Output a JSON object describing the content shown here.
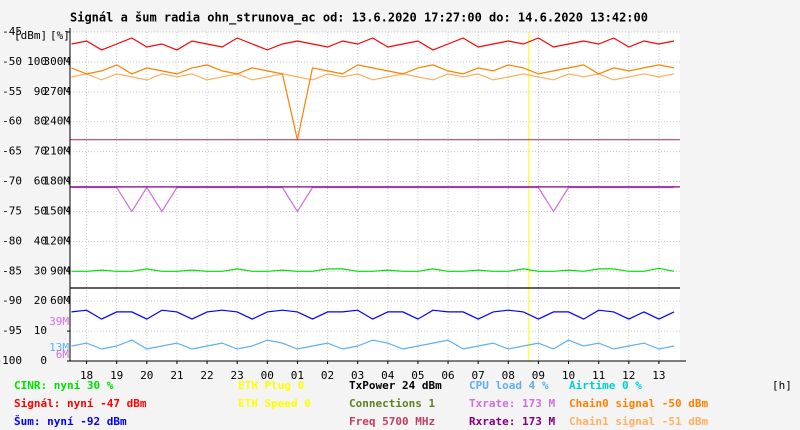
{
  "chart_data": {
    "type": "line",
    "title": "Signál a šum radia ohn_strunova_ac od: 13.6.2020 17:27:00 do: 14.6.2020 13:42:00",
    "y_unit_label": "[dBm]",
    "y2_unit_label": "[%]",
    "x_unit_label": "[h]",
    "xlim": [
      0.45,
      20.7
    ],
    "xticks": [
      {
        "value": 1,
        "label": "18"
      },
      {
        "value": 2,
        "label": "19"
      },
      {
        "value": 3,
        "label": "20"
      },
      {
        "value": 4,
        "label": "21"
      },
      {
        "value": 5,
        "label": "22"
      },
      {
        "value": 6,
        "label": "23"
      },
      {
        "value": 7,
        "label": "00"
      },
      {
        "value": 8,
        "label": "01"
      },
      {
        "value": 9,
        "label": "02"
      },
      {
        "value": 10,
        "label": "03"
      },
      {
        "value": 11,
        "label": "04"
      },
      {
        "value": 12,
        "label": "05"
      },
      {
        "value": 13,
        "label": "06"
      },
      {
        "value": 14,
        "label": "07"
      },
      {
        "value": 15,
        "label": "08"
      },
      {
        "value": 16,
        "label": "09"
      },
      {
        "value": 17,
        "label": "10"
      },
      {
        "value": 18,
        "label": "11"
      },
      {
        "value": 19,
        "label": "12"
      },
      {
        "value": 20,
        "label": "13"
      }
    ],
    "ylim": [
      -100,
      -45
    ],
    "yticks": [
      -100,
      -95,
      -90,
      -85,
      -80,
      -75,
      -70,
      -65,
      -60,
      -55,
      -50,
      -45
    ],
    "y2lim": [
      0,
      110
    ],
    "y2ticks": [
      0,
      10,
      20,
      30,
      40,
      50,
      60,
      70,
      80,
      90,
      100
    ],
    "y3lim": [
      0,
      330
    ],
    "y3ticks": [
      {
        "value": 60,
        "label": "60M"
      },
      {
        "value": 90,
        "label": "90M"
      },
      {
        "value": 120,
        "label": "120M"
      },
      {
        "value": 150,
        "label": "150M"
      },
      {
        "value": 180,
        "label": "180M"
      },
      {
        "value": 210,
        "label": "210M"
      },
      {
        "value": 240,
        "label": "240M"
      },
      {
        "value": 270,
        "label": "270M"
      },
      {
        "value": 300,
        "label": "300M"
      }
    ],
    "y3_markers": [
      {
        "value": 39,
        "label": "39M",
        "color": "#d070e0"
      },
      {
        "value": 13,
        "label": "13M",
        "color": "#60b0f0"
      },
      {
        "value": 6,
        "label": "6M",
        "color": "#d070e0"
      }
    ],
    "grid": true,
    "vertical_marker": {
      "x": 15.68,
      "color": "#ffff00"
    },
    "x": [
      0.5,
      1,
      1.5,
      2,
      2.5,
      3,
      3.5,
      4,
      4.5,
      5,
      5.5,
      6,
      6.5,
      7,
      7.5,
      8,
      8.5,
      9,
      9.5,
      10,
      10.5,
      11,
      11.5,
      12,
      12.5,
      13,
      13.5,
      14,
      14.5,
      15,
      15.5,
      16,
      16.5,
      17,
      17.5,
      18,
      18.5,
      19,
      19.5,
      20,
      20.5
    ],
    "series": [
      {
        "color": "#ffb060",
        "values": [
          -52.5,
          -52,
          -53,
          -52,
          -52.5,
          -53,
          -52,
          -52.5,
          -52,
          -53,
          -52.5,
          -52,
          -53,
          -52.5,
          -52,
          -52.5,
          -53,
          -52,
          -52.5,
          -52,
          -53,
          -52.5,
          -52,
          -52.5,
          -53,
          -52,
          -52.5,
          -52,
          -53,
          -52.5,
          -52,
          -52.5,
          -53,
          -52,
          -52.5,
          -52,
          -53,
          -52.5,
          -52,
          -52.5,
          -52
        ]
      },
      {
        "color": "#ff8000",
        "values": [
          -51,
          -52,
          -51.5,
          -50.5,
          -52,
          -51,
          -51.5,
          -52,
          -51,
          -50.5,
          -51.5,
          -52,
          -51,
          -51.5,
          -52,
          -63,
          -51,
          -51.5,
          -52,
          -50.5,
          -51,
          -51.5,
          -52,
          -51,
          -50.5,
          -51.5,
          -52,
          -51,
          -51.5,
          -50.5,
          -51,
          -52,
          -51.5,
          -51,
          -50.5,
          -52,
          -51,
          -51.5,
          -51,
          -50.5,
          -51
        ]
      },
      {
        "color": "#ff0000",
        "values": [
          -47,
          -46.5,
          -48,
          -47,
          -46,
          -47.5,
          -47,
          -48,
          -46.5,
          -47,
          -47.5,
          -46,
          -47,
          -48,
          -47,
          -46.5,
          -47,
          -47.5,
          -46.5,
          -47,
          -46,
          -47.5,
          -47,
          -46.5,
          -48,
          -47,
          -46,
          -47.5,
          -47,
          -46.5,
          -47,
          -46,
          -47.5,
          -47,
          -46.5,
          -47,
          -46,
          -47.5,
          -46.5,
          -47,
          -46.5
        ]
      },
      {
        "color": "#d070e0",
        "values": [
          -71,
          -71,
          -71,
          -71,
          -75,
          -71,
          -75,
          -71,
          -71,
          -71,
          -71,
          -71,
          -71,
          -71,
          -71,
          -75,
          -71,
          -71,
          -71,
          -71,
          -71,
          -71,
          -71,
          -71,
          -71,
          -71,
          -71,
          -71,
          -71,
          -71,
          -71,
          -71,
          -75,
          -71,
          -71,
          -71,
          -71,
          -71,
          -71,
          -71,
          -71
        ]
      },
      {
        "color": "#00e000",
        "values": [
          -85,
          -85,
          -84.8,
          -85,
          -85,
          -84.6,
          -85,
          -85,
          -84.8,
          -85,
          -85,
          -84.6,
          -85,
          -85,
          -84.8,
          -85,
          -85,
          -84.6,
          -84.6,
          -85,
          -85,
          -84.8,
          -85,
          -85,
          -84.6,
          -85,
          -85,
          -84.8,
          -85,
          -85,
          -84.6,
          -85,
          -85,
          -84.8,
          -85,
          -84.6,
          -84.6,
          -85,
          -85,
          -84.5,
          -85
        ]
      },
      {
        "color": "#0000ff",
        "values": [
          -91.8,
          -91.5,
          -93,
          -91.8,
          -91.8,
          -93,
          -91.5,
          -91.8,
          -93,
          -91.8,
          -91.5,
          -91.8,
          -93,
          -91.8,
          -91.5,
          -91.8,
          -93,
          -91.8,
          -91.8,
          -91.5,
          -93,
          -91.8,
          -91.8,
          -93,
          -91.5,
          -91.8,
          -91.8,
          -93,
          -91.8,
          -91.5,
          -91.8,
          -93,
          -91.8,
          -91.8,
          -93,
          -91.5,
          -91.8,
          -93,
          -91.8,
          -93,
          -91.8
        ]
      },
      {
        "color": "#60b0f0",
        "values": [
          -97.5,
          -97,
          -98,
          -97.5,
          -96.5,
          -98,
          -97.5,
          -97,
          -98,
          -97.5,
          -97,
          -98,
          -97.5,
          -96.5,
          -97,
          -98,
          -97.5,
          -97,
          -98,
          -97.5,
          -96.5,
          -97,
          -98,
          -97.5,
          -97,
          -96.5,
          -98,
          -97.5,
          -97,
          -98,
          -97.5,
          -97,
          -98,
          -96.5,
          -97.5,
          -97,
          -98,
          -97.5,
          -97,
          -98,
          -97.5
        ]
      },
      {
        "color": "#c04060",
        "x": [
          0.45,
          20.7
        ],
        "values": [
          -63,
          -63
        ]
      },
      {
        "color": "#800080",
        "x": [
          0.45,
          20.7
        ],
        "values": [
          -70.9,
          -70.9
        ]
      },
      {
        "color": "#000000",
        "x": [
          0.45,
          20.7
        ],
        "values": [
          -87.8,
          -87.8
        ]
      }
    ],
    "legend": [
      [
        {
          "text": "CINR: nyní 30 %",
          "color": "#00e000"
        },
        {
          "text": "Signál: nyní -47 dBm",
          "color": "#ff0000"
        },
        {
          "text": "Šum: nyní -92 dBm",
          "color": "#0000ff"
        }
      ],
      [
        {
          "text": "ETH Plug 0",
          "color": "#ffff00"
        },
        {
          "text": "ETH Speed 0",
          "color": "#ffff00"
        }
      ],
      [
        {
          "text": "TxPower 24 dBm",
          "color": "#000000"
        },
        {
          "text": "Connections 1",
          "color": "#608020"
        },
        {
          "text": "Freq 5700 MHz",
          "color": "#c04060"
        }
      ],
      [
        {
          "text": "CPU load 4 %",
          "color": "#60b0f0"
        },
        {
          "text": "Txrate: 173 M",
          "color": "#d070e0"
        },
        {
          "text": "Rxrate: 173 M",
          "color": "#800080"
        }
      ],
      [
        {
          "text": "Airtime 0 %",
          "color": "#00d0d0"
        },
        {
          "text": "Chain0 signal -50 dBm",
          "color": "#ff8000"
        },
        {
          "text": "Chain1 signal -51 dBm",
          "color": "#ffb060"
        }
      ]
    ]
  }
}
